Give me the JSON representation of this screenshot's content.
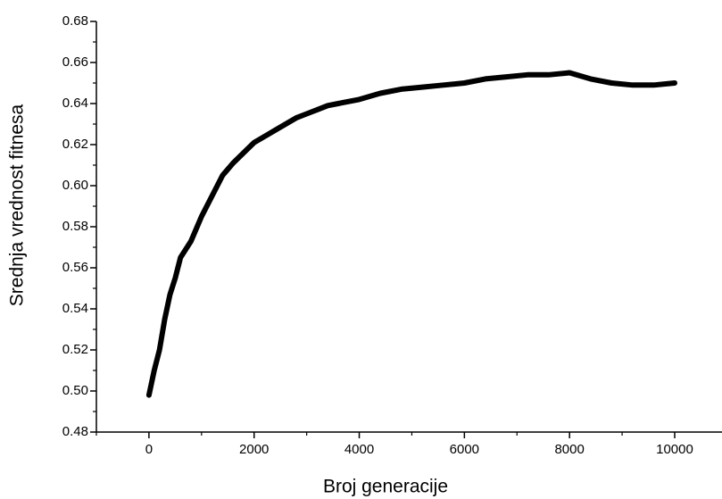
{
  "chart_data": {
    "type": "line",
    "x_label": "Broj generacije",
    "y_label": "Srednja vrednost fitnesa",
    "x": [
      0,
      100,
      200,
      300,
      400,
      500,
      600,
      800,
      1000,
      1200,
      1400,
      1600,
      1800,
      2000,
      2200,
      2400,
      2600,
      2800,
      3000,
      3200,
      3400,
      3600,
      3800,
      4000,
      4400,
      4800,
      5200,
      5600,
      6000,
      6400,
      6800,
      7200,
      7600,
      8000,
      8400,
      8800,
      9200,
      9600,
      10000
    ],
    "series": [
      {
        "color": "#000000",
        "values": [
          0.498,
          0.51,
          0.52,
          0.535,
          0.547,
          0.555,
          0.565,
          0.573,
          0.585,
          0.595,
          0.605,
          0.611,
          0.616,
          0.621,
          0.624,
          0.627,
          0.63,
          0.633,
          0.635,
          0.637,
          0.639,
          0.64,
          0.641,
          0.642,
          0.645,
          0.647,
          0.648,
          0.649,
          0.65,
          0.652,
          0.653,
          0.654,
          0.654,
          0.655,
          0.652,
          0.65,
          0.649,
          0.649,
          0.65
        ]
      }
    ],
    "xlim": [
      -1000,
      10900
    ],
    "ylim": [
      0.48,
      0.68
    ],
    "xticks": [
      0,
      2000,
      4000,
      6000,
      8000,
      10000
    ],
    "xticks_minor": [
      -1000,
      1000,
      3000,
      5000,
      7000,
      9000
    ],
    "yticks": [
      {
        "value": 0.48,
        "label": "0.48"
      },
      {
        "value": 0.5,
        "label": "0.50"
      },
      {
        "value": 0.52,
        "label": "0.52"
      },
      {
        "value": 0.54,
        "label": "0.54"
      },
      {
        "value": 0.56,
        "label": "0.56"
      },
      {
        "value": 0.58,
        "label": "0.58"
      },
      {
        "value": 0.6,
        "label": "0.60"
      },
      {
        "value": 0.62,
        "label": "0.62"
      },
      {
        "value": 0.64,
        "label": "0.64"
      },
      {
        "value": 0.66,
        "label": "0.66"
      },
      {
        "value": 0.68,
        "label": "0.68"
      }
    ],
    "yticks_minor": [
      0.49,
      0.51,
      0.53,
      0.55,
      0.57,
      0.59,
      0.61,
      0.63,
      0.65,
      0.67
    ],
    "grid": false
  }
}
